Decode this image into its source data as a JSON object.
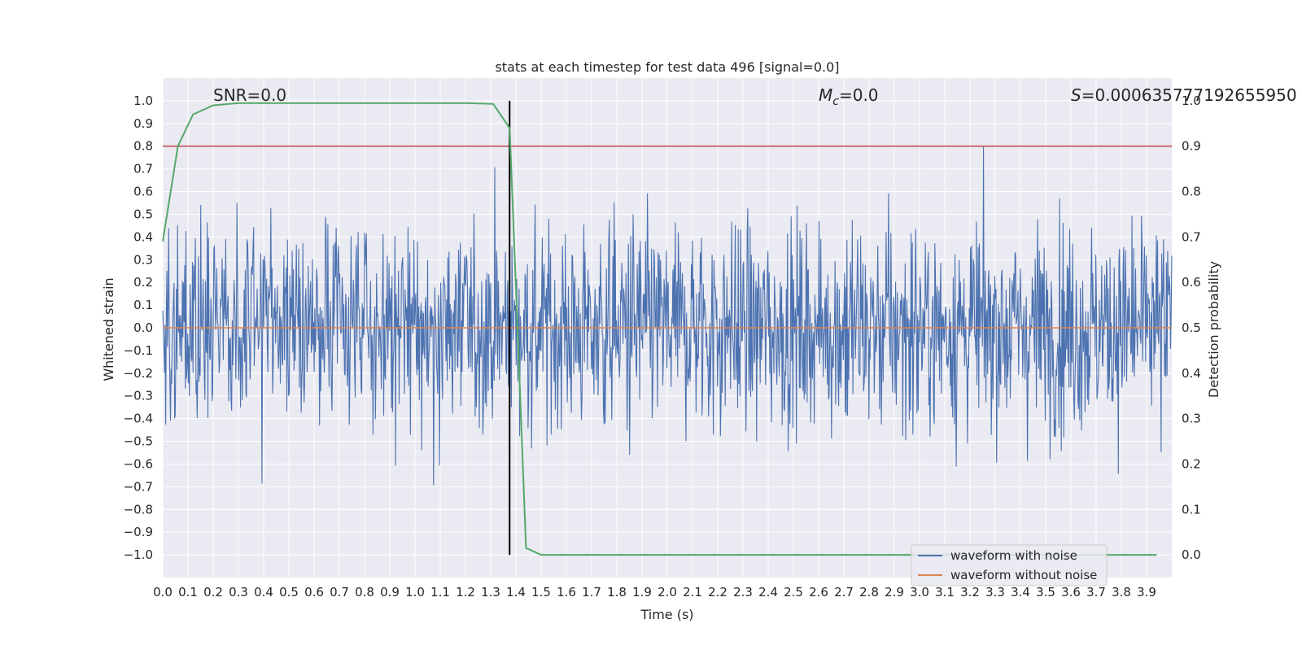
{
  "chart_data": {
    "type": "line",
    "title": "stats at each timestep for test data 496 [signal=0.0]",
    "xlabel": "Time (s)",
    "ylabel": "Whitened strain",
    "y2label": "Detection probability",
    "xlim": [
      0.0,
      4.0
    ],
    "ylim": [
      -1.1,
      1.1
    ],
    "y2lim": [
      -0.05,
      1.05
    ],
    "x_ticks": [
      "0.0",
      "0.1",
      "0.2",
      "0.3",
      "0.4",
      "0.5",
      "0.6",
      "0.7",
      "0.8",
      "0.9",
      "1.0",
      "1.1",
      "1.2",
      "1.3",
      "1.4",
      "1.5",
      "1.6",
      "1.7",
      "1.8",
      "1.9",
      "2.0",
      "2.1",
      "2.2",
      "2.3",
      "2.4",
      "2.5",
      "2.6",
      "2.7",
      "2.8",
      "2.9",
      "3.0",
      "3.1",
      "3.2",
      "3.3",
      "3.4",
      "3.5",
      "3.6",
      "3.7",
      "3.8",
      "3.9"
    ],
    "y_ticks": [
      "1.0",
      "0.9",
      "0.8",
      "0.7",
      "0.6",
      "0.5",
      "0.4",
      "0.3",
      "0.2",
      "0.1",
      "0.0",
      "−0.1",
      "−0.2",
      "−0.3",
      "−0.4",
      "−0.5",
      "−0.6",
      "−0.7",
      "−0.8",
      "−0.9",
      "−1.0"
    ],
    "y2_ticks": [
      "1.0",
      "0.9",
      "0.8",
      "0.7",
      "0.6",
      "0.5",
      "0.4",
      "0.3",
      "0.2",
      "0.1",
      "0.0"
    ],
    "annotations": {
      "snr": "SNR=0.0",
      "mc_symbol": "M",
      "mc_sub": "c",
      "mc_value": "=0.0",
      "s_symbol": "S",
      "s_value": "=0.000635777192655950"
    },
    "legend": {
      "placement": "lower-right",
      "entries": [
        "waveform with noise",
        "waveform without noise"
      ]
    },
    "series": [
      {
        "name": "waveform with noise",
        "axis": "left",
        "color": "#4c72b0",
        "kind": "noise",
        "amplitude_range": [
          -0.95,
          0.97
        ],
        "samples": 1700
      },
      {
        "name": "waveform without noise",
        "axis": "left",
        "color": "#dd8452",
        "x": [
          0.0,
          4.0
        ],
        "y": [
          0.0,
          0.0
        ]
      },
      {
        "name": "detection probability",
        "axis": "right",
        "color": "#55a868",
        "x": [
          0.0,
          0.06,
          0.12,
          0.2,
          0.3,
          0.5,
          0.8,
          1.0,
          1.2,
          1.31,
          1.375,
          1.41,
          1.44,
          1.5,
          1.6,
          2.0,
          3.0,
          3.94
        ],
        "y": [
          0.69,
          0.9,
          0.97,
          0.99,
          0.995,
          0.995,
          0.995,
          0.995,
          0.995,
          0.993,
          0.94,
          0.45,
          0.015,
          0.0,
          0.0,
          0.0,
          0.0,
          0.0
        ]
      }
    ],
    "threshold_line": {
      "axis": "right",
      "value": 0.9,
      "color": "#c44e52"
    },
    "event_marker": {
      "x": 1.375,
      "color": "#000000"
    }
  }
}
